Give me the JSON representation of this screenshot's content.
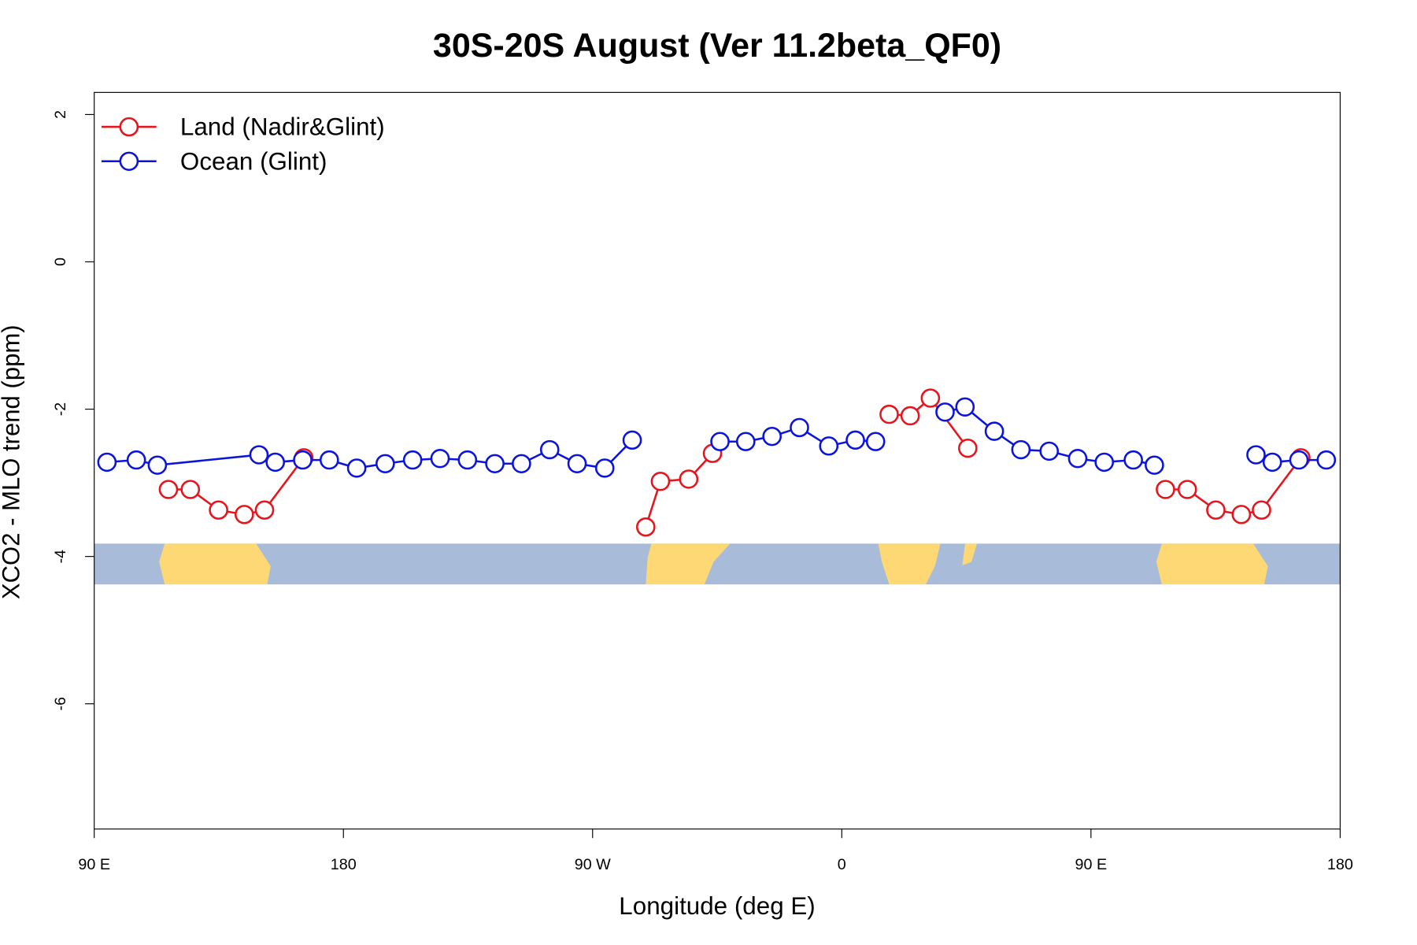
{
  "chart_data": {
    "type": "line",
    "title": "30S-20S August (Ver 11.2beta_QF0)",
    "xlabel": "Longitude (deg E)",
    "ylabel": "XCO2 - MLO trend (ppm)",
    "xlim": [
      90,
      540
    ],
    "ylim": [
      -7.7,
      2.3
    ],
    "xticks": [
      {
        "value": 90,
        "label": "90 E"
      },
      {
        "value": 180,
        "label": "180"
      },
      {
        "value": 270,
        "label": "90 W"
      },
      {
        "value": 360,
        "label": "0"
      },
      {
        "value": 450,
        "label": "90 E"
      },
      {
        "value": 540,
        "label": "180"
      }
    ],
    "yticks": [
      -6,
      -4,
      -2,
      0,
      2
    ],
    "legend": "top-left",
    "series": [
      {
        "name": "Land (Nadir&Glint)",
        "color": "#e8141c",
        "x": [
          116.8,
          124.7,
          134.9,
          144.2,
          151.5,
          165.7,
          null,
          289.2,
          294.5,
          304.7,
          313.3,
          null,
          377.1,
          384.7,
          392.0,
          405.5,
          null,
          476.9,
          484.8,
          495.1,
          504.3,
          511.6,
          525.8
        ],
        "values": [
          -3.09,
          -3.09,
          -3.37,
          -3.43,
          -3.37,
          -2.66,
          null,
          -3.6,
          -2.98,
          -2.95,
          -2.6,
          null,
          -2.07,
          -2.09,
          -1.85,
          -2.53,
          null,
          -3.09,
          -3.09,
          -3.37,
          -3.43,
          -3.37,
          -2.66
        ]
      },
      {
        "name": "Ocean (Glint)",
        "color": "#0a14dc",
        "x": [
          94.6,
          105.2,
          112.8,
          149.5,
          155.4,
          165.3,
          174.9,
          184.8,
          195.1,
          205.0,
          214.9,
          224.8,
          234.7,
          244.3,
          254.5,
          264.4,
          274.4,
          284.3,
          null,
          316.0,
          325.3,
          334.8,
          344.7,
          355.3,
          364.9,
          372.2,
          null,
          397.3,
          404.5,
          415.1,
          424.7,
          434.9,
          445.2,
          454.8,
          465.3,
          472.9,
          null,
          509.6,
          515.5,
          525.1,
          535.0
        ],
        "values": [
          -2.72,
          -2.69,
          -2.76,
          -2.62,
          -2.72,
          -2.69,
          -2.69,
          -2.8,
          -2.74,
          -2.69,
          -2.67,
          -2.69,
          -2.74,
          -2.74,
          -2.55,
          -2.74,
          -2.8,
          -2.42,
          null,
          -2.44,
          -2.44,
          -2.37,
          -2.25,
          -2.5,
          -2.42,
          -2.44,
          null,
          -2.04,
          -1.97,
          -2.3,
          -2.55,
          -2.57,
          -2.67,
          -2.72,
          -2.69,
          -2.76,
          null,
          -2.62,
          -2.72,
          -2.69,
          -2.69
        ]
      }
    ]
  }
}
